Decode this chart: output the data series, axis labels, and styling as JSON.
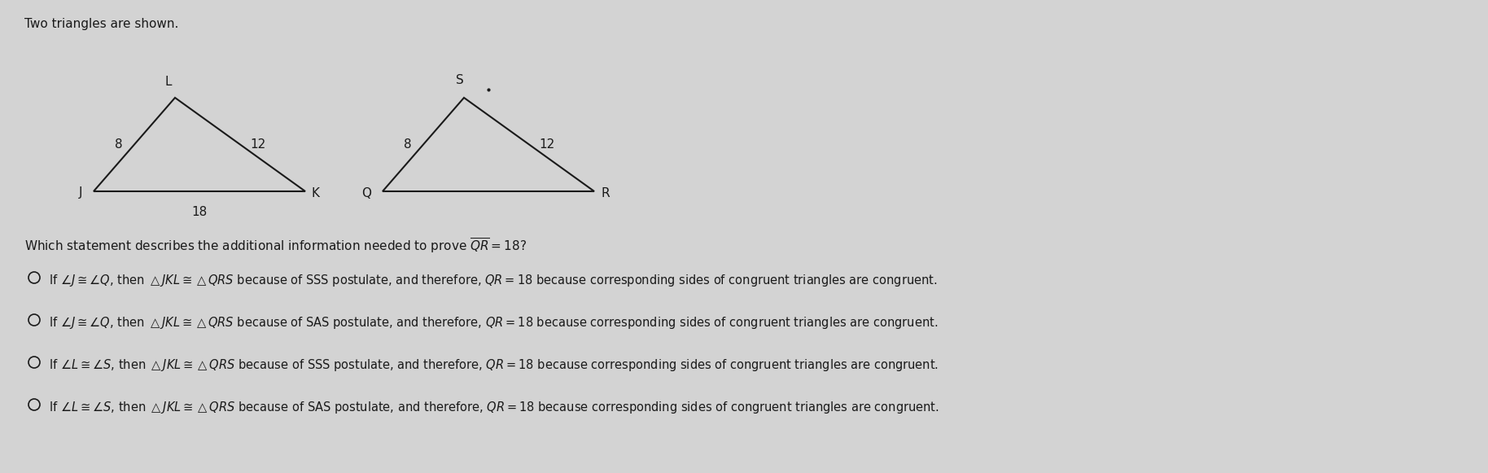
{
  "bg_color": "#d3d3d3",
  "title_text": "Two triangles are shown.",
  "question_text": "Which statement describes the additional information needed to prove $\\overline{QR}=18$?",
  "triangle1": {
    "J": [
      0.0,
      0.0
    ],
    "K": [
      1.8,
      0.0
    ],
    "L": [
      0.55,
      0.7
    ],
    "label_J": "J",
    "label_K": "K",
    "label_L": "L",
    "side_JL": "8",
    "side_LK": "12",
    "side_JK": "18"
  },
  "triangle2": {
    "Q": [
      0.0,
      0.0
    ],
    "R": [
      1.8,
      0.0
    ],
    "S": [
      0.55,
      0.7
    ],
    "label_Q": "Q",
    "label_R": "R",
    "label_S": "S",
    "side_QS": "8",
    "side_SR": "12"
  },
  "options": [
    "If $\\angle J \\cong \\angle Q$, then $\\triangle JKL \\cong \\triangle QRS$ because of SSS postulate, and therefore, $QR = 18$ because corresponding sides of congruent triangles are congruent.",
    "If $\\angle J \\cong \\angle Q$, then $\\triangle JKL \\cong \\triangle QRS$ because of SAS postulate, and therefore, $QR = 18$ because corresponding sides of congruent triangles are congruent.",
    "If $\\angle L \\cong \\angle S$, then $\\triangle JKL \\cong \\triangle QRS$ because of SSS postulate, and therefore, $QR = 18$ because corresponding sides of congruent triangles are congruent.",
    "If $\\angle L \\cong \\angle S$, then $\\triangle JKL \\cong \\triangle QRS$ because of SAS postulate, and therefore, $QR = 18$ because corresponding sides of congruent triangles are congruent."
  ],
  "line_color": "#1a1a1a",
  "text_color": "#1a1a1a",
  "font_size_main": 11,
  "font_size_labels": 11,
  "font_size_options": 10.5
}
